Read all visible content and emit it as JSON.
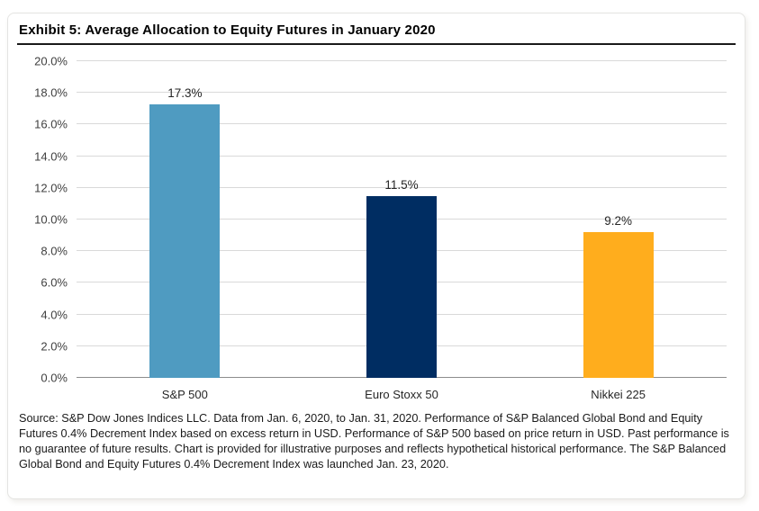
{
  "chart_data": {
    "type": "bar",
    "title": "Exhibit 5: Average Allocation to Equity Futures in January 2020",
    "categories": [
      "S&P 500",
      "Euro Stoxx 50",
      "Nikkei 225"
    ],
    "values": [
      17.3,
      11.5,
      9.2
    ],
    "value_labels": [
      "17.3%",
      "11.5%",
      "9.2%"
    ],
    "bar_colors": [
      "#4F9BC1",
      "#002D62",
      "#FFAD1D"
    ],
    "ylim": [
      0,
      20
    ],
    "ytick_step": 2,
    "ytick_labels": [
      "0.0%",
      "2.0%",
      "4.0%",
      "6.0%",
      "8.0%",
      "10.0%",
      "12.0%",
      "14.0%",
      "16.0%",
      "18.0%",
      "20.0%"
    ],
    "grid": true,
    "legend": "none",
    "gridline_color": "#D9D9D9",
    "axis_line_color": "#8C8C8C"
  },
  "footer": {
    "source_text": "Source: S&P Dow Jones Indices LLC. Data from Jan. 6, 2020, to Jan. 31, 2020. Performance of S&P Balanced Global Bond and Equity Futures 0.4% Decrement Index based on excess return in USD. Performance of S&P 500 based on price return in USD. Past performance is no guarantee of future results. Chart is provided for illustrative purposes and reflects hypothetical historical performance. The S&P Balanced Global Bond and Equity Futures 0.4% Decrement Index was launched Jan. 23, 2020."
  }
}
